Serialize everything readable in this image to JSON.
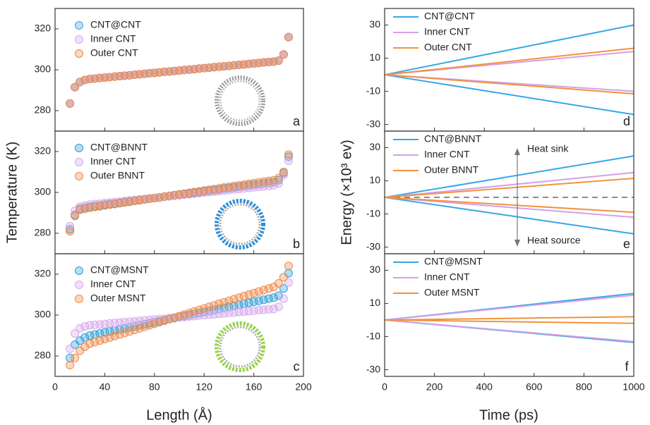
{
  "figure": {
    "left_ylabel": "Temperature (K)",
    "left_xlabel": "Length (Å)",
    "right_ylabel": "Energy (×10³ ev)",
    "right_xlabel": "Time (ps)"
  },
  "chart_data": [
    {
      "type": "scatter",
      "label": "a",
      "xlim": [
        0,
        200
      ],
      "ylim": [
        270,
        330
      ],
      "xticks": [
        0,
        40,
        80,
        120,
        160,
        200
      ],
      "yticks": [
        280,
        300,
        320
      ],
      "x": [
        12,
        16,
        20,
        24,
        28,
        32,
        36,
        40,
        44,
        48,
        52,
        56,
        60,
        64,
        68,
        72,
        76,
        80,
        84,
        88,
        92,
        96,
        100,
        104,
        108,
        112,
        116,
        120,
        124,
        128,
        132,
        136,
        140,
        144,
        148,
        152,
        156,
        160,
        164,
        168,
        172,
        176,
        180,
        184,
        188
      ],
      "series": [
        {
          "name": "CNT@CNT",
          "color": "#4a9fd8",
          "values": [
            283.5,
            291.5,
            294.0,
            295.0,
            295.5,
            295.7,
            296.0,
            296.2,
            296.4,
            296.7,
            296.9,
            297.1,
            297.3,
            297.6,
            297.8,
            298.0,
            298.3,
            298.5,
            298.7,
            299.0,
            299.2,
            299.4,
            299.6,
            299.9,
            300.1,
            300.3,
            300.6,
            300.8,
            301.0,
            301.3,
            301.5,
            301.7,
            301.9,
            302.2,
            302.4,
            302.6,
            302.9,
            303.1,
            303.3,
            303.6,
            303.8,
            304.0,
            304.5,
            307.5,
            316.0
          ]
        },
        {
          "name": "Inner CNT",
          "color": "#d8a8ec",
          "values": [
            283.5,
            291.5,
            294.0,
            295.0,
            295.5,
            295.7,
            296.0,
            296.2,
            296.4,
            296.7,
            296.9,
            297.1,
            297.3,
            297.6,
            297.8,
            298.0,
            298.3,
            298.5,
            298.7,
            299.0,
            299.2,
            299.4,
            299.6,
            299.9,
            300.1,
            300.3,
            300.6,
            300.8,
            301.0,
            301.3,
            301.5,
            301.7,
            301.9,
            302.2,
            302.4,
            302.6,
            302.9,
            303.1,
            303.3,
            303.6,
            303.8,
            304.0,
            304.5,
            307.5,
            316.0
          ]
        },
        {
          "name": "Outer CNT",
          "color": "#f0894a",
          "values": [
            283.5,
            291.5,
            294.0,
            295.0,
            295.5,
            295.7,
            296.0,
            296.2,
            296.4,
            296.7,
            296.9,
            297.1,
            297.3,
            297.6,
            297.8,
            298.0,
            298.3,
            298.5,
            298.7,
            299.0,
            299.2,
            299.4,
            299.6,
            299.9,
            300.1,
            300.3,
            300.6,
            300.8,
            301.0,
            301.3,
            301.5,
            301.7,
            301.9,
            302.2,
            302.4,
            302.6,
            302.9,
            303.1,
            303.3,
            303.6,
            303.8,
            304.0,
            304.5,
            307.5,
            316.0
          ]
        }
      ]
    },
    {
      "type": "scatter",
      "label": "b",
      "xlim": [
        0,
        200
      ],
      "ylim": [
        270,
        330
      ],
      "xticks": [
        0,
        40,
        80,
        120,
        160,
        200
      ],
      "yticks": [
        280,
        300,
        320
      ],
      "x": [
        12,
        16,
        20,
        24,
        28,
        32,
        36,
        40,
        44,
        48,
        52,
        56,
        60,
        64,
        68,
        72,
        76,
        80,
        84,
        88,
        92,
        96,
        100,
        104,
        108,
        112,
        116,
        120,
        124,
        128,
        132,
        136,
        140,
        144,
        148,
        152,
        156,
        160,
        164,
        168,
        172,
        176,
        180,
        184,
        188
      ],
      "series": [
        {
          "name": "CNT@BNNT",
          "color": "#2f9fd6",
          "values": [
            282,
            289,
            292,
            292.5,
            293.0,
            293.3,
            293.6,
            294.0,
            294.3,
            294.6,
            294.9,
            295.3,
            295.6,
            295.9,
            296.2,
            296.6,
            296.9,
            297.2,
            297.5,
            297.9,
            298.2,
            298.5,
            298.8,
            299.2,
            299.5,
            299.8,
            300.1,
            300.5,
            300.8,
            301.1,
            301.4,
            301.8,
            302.1,
            302.4,
            302.7,
            303.1,
            303.4,
            303.7,
            304.0,
            304.4,
            304.7,
            305.0,
            306,
            309.5,
            317.5
          ]
        },
        {
          "name": "Inner CNT",
          "color": "#d8a8ec",
          "values": [
            283.5,
            291,
            293,
            293.5,
            294.0,
            294.3,
            294.5,
            294.8,
            295.0,
            295.3,
            295.5,
            295.8,
            296.1,
            296.3,
            296.6,
            296.8,
            297.1,
            297.3,
            297.6,
            297.9,
            298.1,
            298.4,
            298.6,
            298.9,
            299.1,
            299.4,
            299.7,
            299.9,
            300.2,
            300.4,
            300.7,
            300.9,
            301.2,
            301.5,
            301.7,
            302.0,
            302.2,
            302.5,
            302.7,
            303.0,
            303.2,
            303.5,
            304.5,
            308.5,
            315.5
          ]
        },
        {
          "name": "Outer BNNT",
          "color": "#f0894a",
          "values": [
            281,
            288.5,
            291.5,
            292,
            292.5,
            292.9,
            293.2,
            293.6,
            294.0,
            294.3,
            294.7,
            295.1,
            295.4,
            295.8,
            296.1,
            296.5,
            296.9,
            297.2,
            297.6,
            298.0,
            298.3,
            298.7,
            299.1,
            299.4,
            299.8,
            300.2,
            300.5,
            300.9,
            301.3,
            301.6,
            302.0,
            302.4,
            302.7,
            303.1,
            303.4,
            303.8,
            304.2,
            304.5,
            304.9,
            305.3,
            305.6,
            306.0,
            307,
            310,
            318.5
          ]
        }
      ]
    },
    {
      "type": "scatter",
      "label": "c",
      "xlim": [
        0,
        200
      ],
      "ylim": [
        270,
        330
      ],
      "xticks": [
        0,
        40,
        80,
        120,
        160,
        200
      ],
      "yticks": [
        280,
        300,
        320
      ],
      "x": [
        12,
        16,
        20,
        24,
        28,
        32,
        36,
        40,
        44,
        48,
        52,
        56,
        60,
        64,
        68,
        72,
        76,
        80,
        84,
        88,
        92,
        96,
        100,
        104,
        108,
        112,
        116,
        120,
        124,
        128,
        132,
        136,
        140,
        144,
        148,
        152,
        156,
        160,
        164,
        168,
        172,
        176,
        180,
        184,
        188
      ],
      "series": [
        {
          "name": "CNT@MSNT",
          "color": "#2f9fd6",
          "values": [
            279,
            285.5,
            287.5,
            289,
            290,
            290.5,
            291,
            291.5,
            292,
            292.5,
            293,
            293.5,
            294,
            294.5,
            295,
            295.5,
            296,
            296.5,
            297,
            297.5,
            298,
            298.5,
            299,
            299.5,
            300,
            300.5,
            301,
            301.5,
            302,
            302.5,
            303,
            303.5,
            304,
            304.5,
            305,
            305.5,
            306,
            306.5,
            307,
            307.5,
            308,
            308.5,
            309.5,
            313,
            320.5
          ]
        },
        {
          "name": "Inner CNT",
          "color": "#d8a8ec",
          "values": [
            283.5,
            291,
            293.5,
            294.5,
            295.0,
            295.2,
            295.4,
            295.6,
            295.9,
            296.1,
            296.3,
            296.5,
            296.7,
            296.9,
            297.2,
            297.4,
            297.6,
            297.8,
            298.0,
            298.2,
            298.5,
            298.7,
            298.9,
            299.1,
            299.3,
            299.5,
            299.8,
            300.0,
            300.2,
            300.4,
            300.6,
            300.8,
            301.1,
            301.3,
            301.5,
            301.7,
            301.9,
            302.1,
            302.4,
            302.6,
            302.8,
            303.0,
            304,
            308,
            316
          ]
        },
        {
          "name": "Outer MSNT",
          "color": "#f0894a",
          "values": [
            275.5,
            279,
            282.5,
            284.5,
            286,
            286.75,
            287.5,
            288.25,
            289,
            289.75,
            290.5,
            291.25,
            292,
            292.75,
            293.5,
            294.25,
            295,
            295.75,
            296.5,
            297.25,
            298,
            298.75,
            299.5,
            300.25,
            301,
            301.75,
            302.5,
            303.25,
            304,
            304.75,
            305.5,
            306.25,
            307,
            307.75,
            308.5,
            309.25,
            310,
            310.75,
            311.5,
            312.25,
            313,
            313.75,
            315.5,
            318.5,
            324
          ]
        }
      ]
    },
    {
      "type": "line",
      "label": "d",
      "xlim": [
        0,
        1000
      ],
      "ylim": [
        -34,
        40
      ],
      "xticks": [
        0,
        200,
        400,
        600,
        800,
        1000
      ],
      "yticks": [
        -30,
        -10,
        10,
        30
      ],
      "x": [
        0,
        1000
      ],
      "series": [
        {
          "name": "CNT@CNT",
          "color": "#34a8e6",
          "values": [
            0,
            30
          ],
          "source_values": [
            0,
            -24
          ]
        },
        {
          "name": "Inner CNT",
          "color": "#d4a0e8",
          "values": [
            0,
            14
          ],
          "source_values": [
            0,
            -10
          ]
        },
        {
          "name": "Outer CNT",
          "color": "#f3923e",
          "values": [
            0,
            16
          ],
          "source_values": [
            0,
            -11.5
          ]
        }
      ]
    },
    {
      "type": "line",
      "label": "e",
      "xlim": [
        0,
        1000
      ],
      "ylim": [
        -34,
        40
      ],
      "xticks": [
        0,
        200,
        400,
        600,
        800,
        1000
      ],
      "yticks": [
        -30,
        -10,
        10,
        30
      ],
      "zero_line": true,
      "annotations": [
        "Heat sink",
        "Heat source"
      ],
      "x": [
        0,
        1000
      ],
      "series": [
        {
          "name": "CNT@BNNT",
          "color": "#34a8e6",
          "values": [
            0,
            25
          ],
          "source_values": [
            0,
            -22
          ]
        },
        {
          "name": "Inner CNT",
          "color": "#d4a0e8",
          "values": [
            0,
            15
          ],
          "source_values": [
            0,
            -12
          ]
        },
        {
          "name": "Outer BNNT",
          "color": "#f3923e",
          "values": [
            0,
            11.5
          ],
          "source_values": [
            0,
            -9
          ]
        }
      ]
    },
    {
      "type": "line",
      "label": "f",
      "xlim": [
        0,
        1000
      ],
      "ylim": [
        -34,
        40
      ],
      "xticks": [
        0,
        200,
        400,
        600,
        800,
        1000
      ],
      "yticks": [
        -30,
        -10,
        10,
        30
      ],
      "x": [
        0,
        1000
      ],
      "series": [
        {
          "name": "CNT@MSNT",
          "color": "#34a8e6",
          "values": [
            0,
            16
          ],
          "source_values": [
            0,
            -13.5
          ]
        },
        {
          "name": "Inner CNT",
          "color": "#d4a0e8",
          "values": [
            0,
            15
          ],
          "source_values": [
            0,
            -13
          ]
        },
        {
          "name": "Outer MSNT",
          "color": "#f3923e",
          "values": [
            0,
            2
          ],
          "source_values": [
            0,
            -2
          ]
        }
      ]
    }
  ]
}
